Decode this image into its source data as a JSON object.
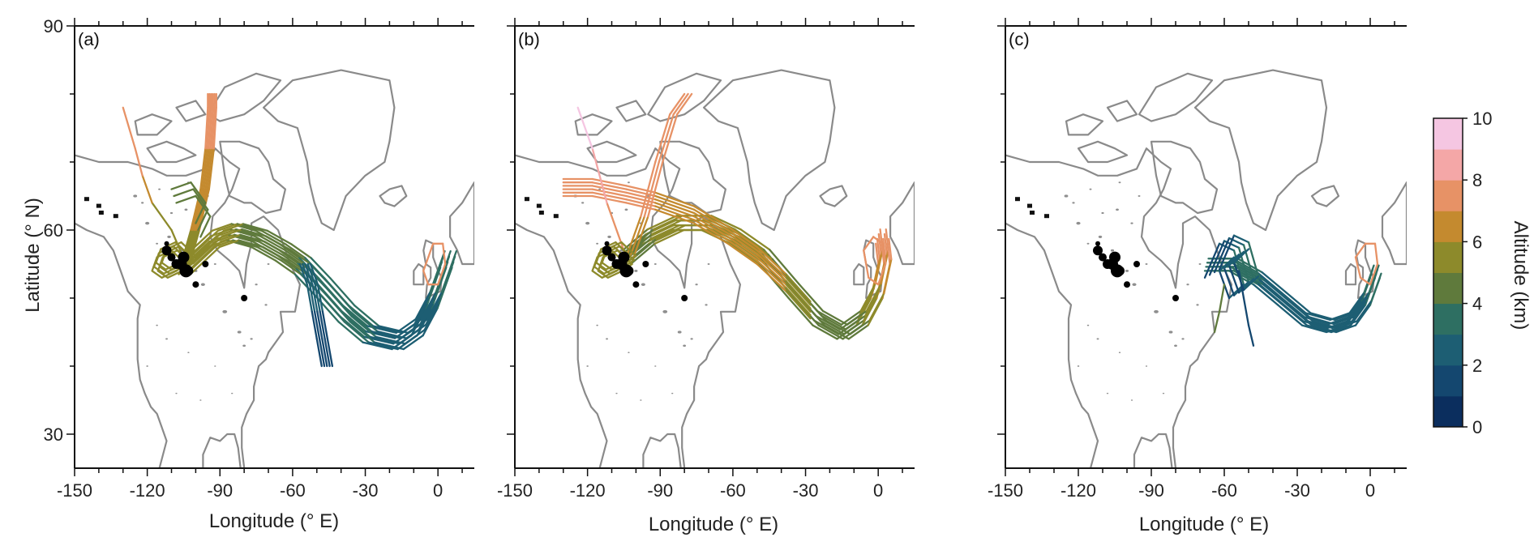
{
  "figure": {
    "y_axis_title": "Latitude (° N)",
    "x_axis_title": "Longitude (° E)",
    "y_ticks": [
      "90",
      "60",
      "30"
    ],
    "x_ticks": [
      "-150",
      "-120",
      "-90",
      "-60",
      "-30",
      "0"
    ],
    "colorbar": {
      "title": "Altitude (km)",
      "ticks": [
        "0",
        "2",
        "4",
        "6",
        "8",
        "10"
      ],
      "colors": [
        "#0b2e5e",
        "#14476f",
        "#1d5e73",
        "#2e6f62",
        "#5f7a3c",
        "#8d8a2b",
        "#c48a2f",
        "#e79266",
        "#f4a7a7",
        "#f5c6e2"
      ]
    }
  },
  "panels": [
    {
      "label": "(a)"
    },
    {
      "label": "(b)"
    },
    {
      "label": "(c)"
    }
  ],
  "chart_data": {
    "type": "map",
    "x_range": [
      -150,
      15
    ],
    "y_range": [
      25,
      90
    ],
    "colorbar_range_km": [
      0,
      10
    ],
    "sources": [
      [
        -112,
        57
      ],
      [
        -110,
        56
      ],
      [
        -108,
        55
      ],
      [
        -106,
        55
      ],
      [
        -104,
        54
      ],
      [
        -105,
        56
      ],
      [
        -103,
        54
      ],
      [
        -100,
        52
      ],
      [
        -96,
        55
      ],
      [
        -80,
        50
      ],
      [
        -112,
        58
      ]
    ],
    "panels": [
      {
        "id": "a",
        "trajectories": "bundle over central Canada, eastward to ~-10°E then loop near 0°E; many strands north to 80°N",
        "altitude_km": [
          0,
          9
        ]
      },
      {
        "id": "b",
        "trajectories": "higher altitudes 4–8 km; loop near -110°E; long transport to Europe",
        "altitude_km": [
          3,
          9
        ]
      },
      {
        "id": "c",
        "trajectories": "low altitudes 0–4 km; from -60°E to Europe",
        "altitude_km": [
          0,
          8
        ]
      }
    ]
  }
}
